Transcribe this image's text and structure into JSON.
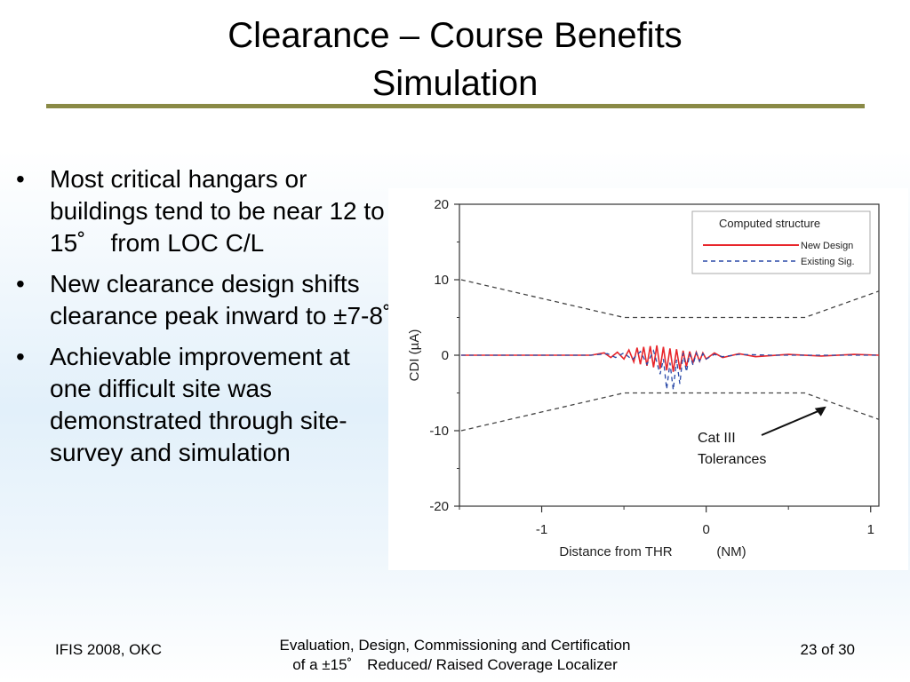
{
  "slide": {
    "title_line1": "Clearance – Course Benefits",
    "title_line2": "Simulation",
    "bullets": [
      "Most critical hangars or buildings tend to be near 12 to 15˚　from LOC C/L",
      "New clearance design shifts clearance peak inward to ±7-8˚",
      "Achievable improvement at one difficult site was demonstrated through site-survey and simulation"
    ],
    "bullet_glyph": "•"
  },
  "footer": {
    "left": "IFIS 2008, OKC",
    "center_line1": "Evaluation, Design, Commissioning and Certification",
    "center_line2": "of a ±15˚　Reduced/ Raised Coverage Localizer",
    "right": "23 of 30"
  },
  "chart_data": {
    "type": "line",
    "xlabel": "Distance from THR",
    "xunit": "(NM)",
    "ylabel": "CDI (µA)",
    "xlim": [
      -1.5,
      1.05
    ],
    "ylim": [
      -20,
      20
    ],
    "x_ticks": [
      -1,
      0,
      1
    ],
    "x_tick_labels": [
      "-1",
      "0",
      "1"
    ],
    "y_ticks": [
      20,
      10,
      0,
      -10,
      -20
    ],
    "y_tick_labels": [
      "20",
      "10",
      "0",
      "-10",
      "-20"
    ],
    "grid": false,
    "legend": {
      "title": "Computed structure",
      "position": "top-right",
      "entries": [
        "New Design",
        "Existing Sig."
      ]
    },
    "series": [
      {
        "name": "New Design",
        "color": "#e8262b",
        "style": "solid",
        "x": [
          -1.49,
          -1.2,
          -0.9,
          -0.7,
          -0.62,
          -0.58,
          -0.54,
          -0.5,
          -0.47,
          -0.44,
          -0.42,
          -0.4,
          -0.38,
          -0.36,
          -0.34,
          -0.32,
          -0.3,
          -0.28,
          -0.26,
          -0.24,
          -0.22,
          -0.2,
          -0.18,
          -0.16,
          -0.14,
          -0.12,
          -0.1,
          -0.08,
          -0.06,
          -0.04,
          -0.02,
          0.0,
          0.05,
          0.1,
          0.2,
          0.3,
          0.5,
          0.7,
          0.9,
          1.05
        ],
        "y": [
          0,
          0,
          0,
          0,
          0.3,
          -0.3,
          0.4,
          -0.5,
          0.7,
          -0.9,
          1.0,
          -1.2,
          1.1,
          -1.4,
          1.2,
          -1.6,
          1.3,
          -1.8,
          1.1,
          -2.0,
          0.9,
          -2.2,
          0.8,
          -1.9,
          0.6,
          -1.5,
          0.5,
          -1.0,
          0.4,
          -0.8,
          0.3,
          -0.5,
          0.3,
          -0.3,
          0.2,
          -0.2,
          0.1,
          -0.1,
          0.1,
          0
        ]
      },
      {
        "name": "Existing Sig.",
        "color": "#2b4aa8",
        "style": "dashed",
        "x": [
          -1.49,
          -1.2,
          -0.9,
          -0.7,
          -0.6,
          -0.55,
          -0.5,
          -0.45,
          -0.4,
          -0.36,
          -0.32,
          -0.28,
          -0.26,
          -0.24,
          -0.22,
          -0.2,
          -0.18,
          -0.16,
          -0.14,
          -0.12,
          -0.1,
          -0.08,
          -0.06,
          -0.04,
          -0.02,
          0.0,
          0.05,
          0.1,
          0.2,
          0.4,
          0.6,
          0.8,
          1.05
        ],
        "y": [
          0,
          0,
          0,
          0,
          0.2,
          -0.3,
          0.3,
          -0.6,
          0.5,
          -1.2,
          0.6,
          -2.5,
          -0.5,
          -4.5,
          -1.0,
          -4.6,
          -0.6,
          -3.8,
          0.3,
          -2.2,
          0.2,
          -1.3,
          0.3,
          -0.8,
          0.2,
          -0.5,
          0.1,
          -0.2,
          0.1,
          0,
          0,
          0,
          0
        ]
      },
      {
        "name": "Upper tolerance",
        "color": "#444444",
        "style": "dashed",
        "x": [
          -1.49,
          -0.5,
          0.6,
          1.05
        ],
        "y": [
          10,
          5,
          5,
          8.5
        ]
      },
      {
        "name": "Lower tolerance",
        "color": "#444444",
        "style": "dashed",
        "x": [
          -1.49,
          -0.5,
          0.6,
          1.05
        ],
        "y": [
          -10,
          -5,
          -5,
          -8.5
        ]
      }
    ],
    "annotations": [
      {
        "text_line1": "Cat III",
        "text_line2": "Tolerances",
        "arrow_to_x": 0.73,
        "arrow_to_y": -6.8
      }
    ]
  }
}
